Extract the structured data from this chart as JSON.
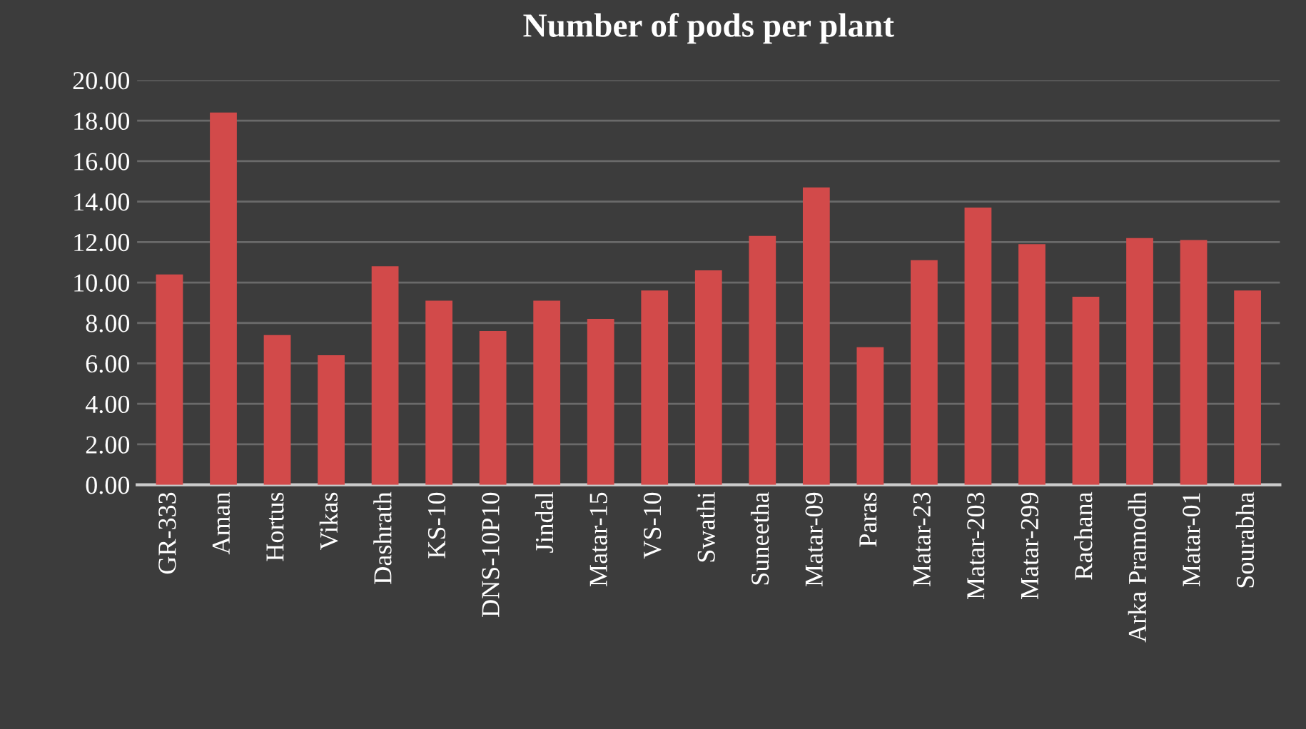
{
  "chart_data": {
    "type": "bar",
    "title": "Number of pods per plant",
    "categories": [
      "GR-333",
      "Aman",
      "Hortus",
      "Vikas",
      "Dashrath",
      "KS-10",
      "DNS-10P10",
      "Jindal",
      "Matar-15",
      "VS-10",
      "Swathi",
      "Suneetha",
      "Matar-09",
      "Paras",
      "Matar-23",
      "Matar-203",
      "Matar-299",
      "Rachana",
      "Arka Pramodh",
      "Matar-01",
      "Sourabha"
    ],
    "values": [
      10.4,
      18.4,
      7.4,
      6.4,
      10.8,
      9.1,
      7.6,
      9.1,
      8.2,
      9.6,
      10.6,
      12.3,
      14.7,
      6.8,
      11.1,
      13.7,
      11.9,
      9.3,
      12.2,
      12.1,
      9.6
    ],
    "color": "#d24a4a",
    "ylim": [
      0,
      20
    ],
    "yticks": [
      {
        "value": 0,
        "label": "0.00"
      },
      {
        "value": 2,
        "label": "2.00"
      },
      {
        "value": 4,
        "label": "4.00"
      },
      {
        "value": 6,
        "label": "6.00"
      },
      {
        "value": 8,
        "label": "8.00"
      },
      {
        "value": 10,
        "label": "10.00"
      },
      {
        "value": 12,
        "label": "12.00"
      },
      {
        "value": 14,
        "label": "14.00"
      },
      {
        "value": 16,
        "label": "16.00"
      },
      {
        "value": 18,
        "label": "18.00"
      },
      {
        "value": 20,
        "label": "20.00"
      }
    ],
    "grid": "y"
  }
}
